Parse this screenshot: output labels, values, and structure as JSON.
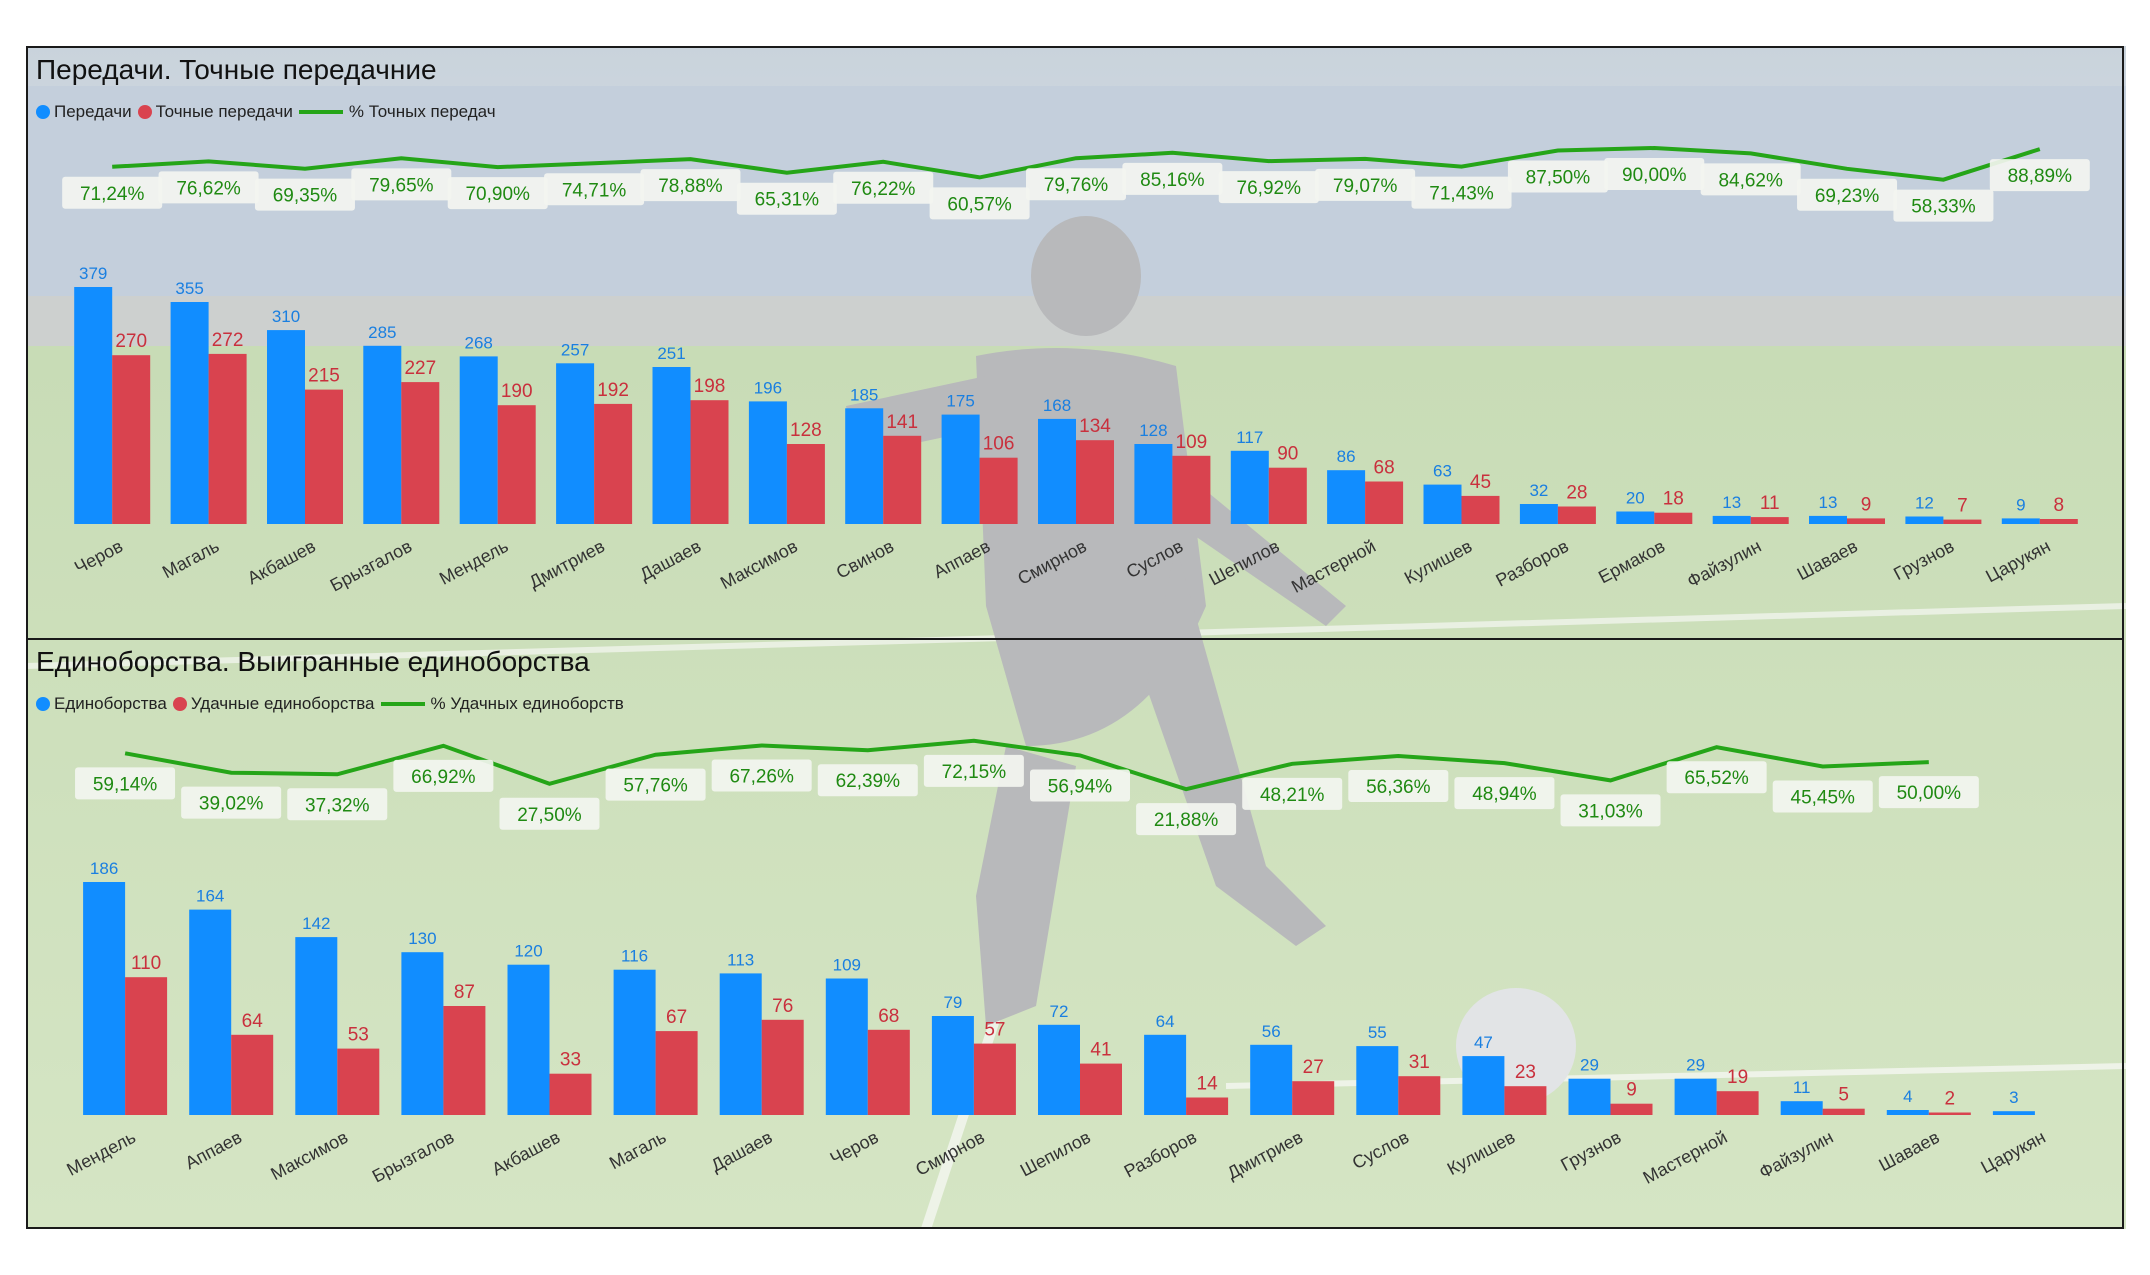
{
  "colors": {
    "total": "#118DFF",
    "accurate": "#D9434F",
    "percent_line": "#25A518",
    "label_box": "#F3F5F0",
    "panel_border": "#1a1a1a"
  },
  "chart_data": [
    {
      "type": "bar",
      "title": "Передачи. Точные передачние",
      "legend_position": "top-left",
      "categories": [
        "Черов",
        "Магаль",
        "Акбашев",
        "Брызгалов",
        "Мендель",
        "Дмитриев",
        "Дашаев",
        "Максимов",
        "Свинов",
        "Аппаев",
        "Смирнов",
        "Суслов",
        "Шепилов",
        "Мастерной",
        "Кулишев",
        "Разборов",
        "Ермаков",
        "Файзулин",
        "Шаваев",
        "Грузнов",
        "Царукян"
      ],
      "series": [
        {
          "name": "Передачи",
          "values": [
            379,
            355,
            310,
            285,
            268,
            257,
            251,
            196,
            185,
            175,
            168,
            128,
            117,
            86,
            63,
            32,
            20,
            13,
            13,
            12,
            9
          ]
        },
        {
          "name": "Точные передачи",
          "values": [
            270,
            272,
            215,
            227,
            190,
            192,
            198,
            128,
            141,
            106,
            134,
            109,
            90,
            68,
            45,
            28,
            18,
            11,
            9,
            7,
            8
          ]
        }
      ],
      "line_series": {
        "name": "% Точных передач",
        "labels": [
          "71,24%",
          "76,62%",
          "69,35%",
          "79,65%",
          "70,90%",
          "74,71%",
          "78,88%",
          "65,31%",
          "76,22%",
          "60,57%",
          "79,76%",
          "85,16%",
          "76,92%",
          "79,07%",
          "71,43%",
          "87,50%",
          "90,00%",
          "84,62%",
          "69,23%",
          "58,33%",
          "88,89%"
        ],
        "values": [
          71.24,
          76.62,
          69.35,
          79.65,
          70.9,
          74.71,
          78.88,
          65.31,
          76.22,
          60.57,
          79.76,
          85.16,
          76.92,
          79.07,
          71.43,
          87.5,
          90.0,
          84.62,
          69.23,
          58.33,
          88.89
        ]
      },
      "grid": false
    },
    {
      "type": "bar",
      "title": "Единоборства. Выигранные единоборства",
      "legend_position": "top-left",
      "categories": [
        "Мендель",
        "Аппаев",
        "Максимов",
        "Брызгалов",
        "Акбашев",
        "Магаль",
        "Дашаев",
        "Черов",
        "Смирнов",
        "Шепилов",
        "Разборов",
        "Дмитриев",
        "Суслов",
        "Кулишев",
        "Грузнов",
        "Мастерной",
        "Файзулин",
        "Шаваев",
        "Царукян"
      ],
      "series": [
        {
          "name": "Единоборства",
          "values": [
            186,
            164,
            142,
            130,
            120,
            116,
            113,
            109,
            79,
            72,
            64,
            56,
            55,
            47,
            29,
            29,
            11,
            4,
            3
          ]
        },
        {
          "name": "Удачные единоборства",
          "values": [
            110,
            64,
            53,
            87,
            33,
            67,
            76,
            68,
            57,
            41,
            14,
            27,
            31,
            23,
            9,
            19,
            5,
            2,
            null
          ]
        }
      ],
      "line_series": {
        "name": "% Удачных единоборств",
        "labels": [
          "59,14%",
          "39,02%",
          "37,32%",
          "66,92%",
          "27,50%",
          "57,76%",
          "67,26%",
          "62,39%",
          "72,15%",
          "56,94%",
          "21,88%",
          "48,21%",
          "56,36%",
          "48,94%",
          "31,03%",
          "65,52%",
          "45,45%",
          "50,00%",
          ""
        ],
        "values": [
          59.14,
          39.02,
          37.32,
          66.92,
          27.5,
          57.76,
          67.26,
          62.39,
          72.15,
          56.94,
          21.88,
          48.21,
          56.36,
          48.94,
          31.03,
          65.52,
          45.45,
          50.0,
          null
        ]
      },
      "grid": false
    }
  ]
}
